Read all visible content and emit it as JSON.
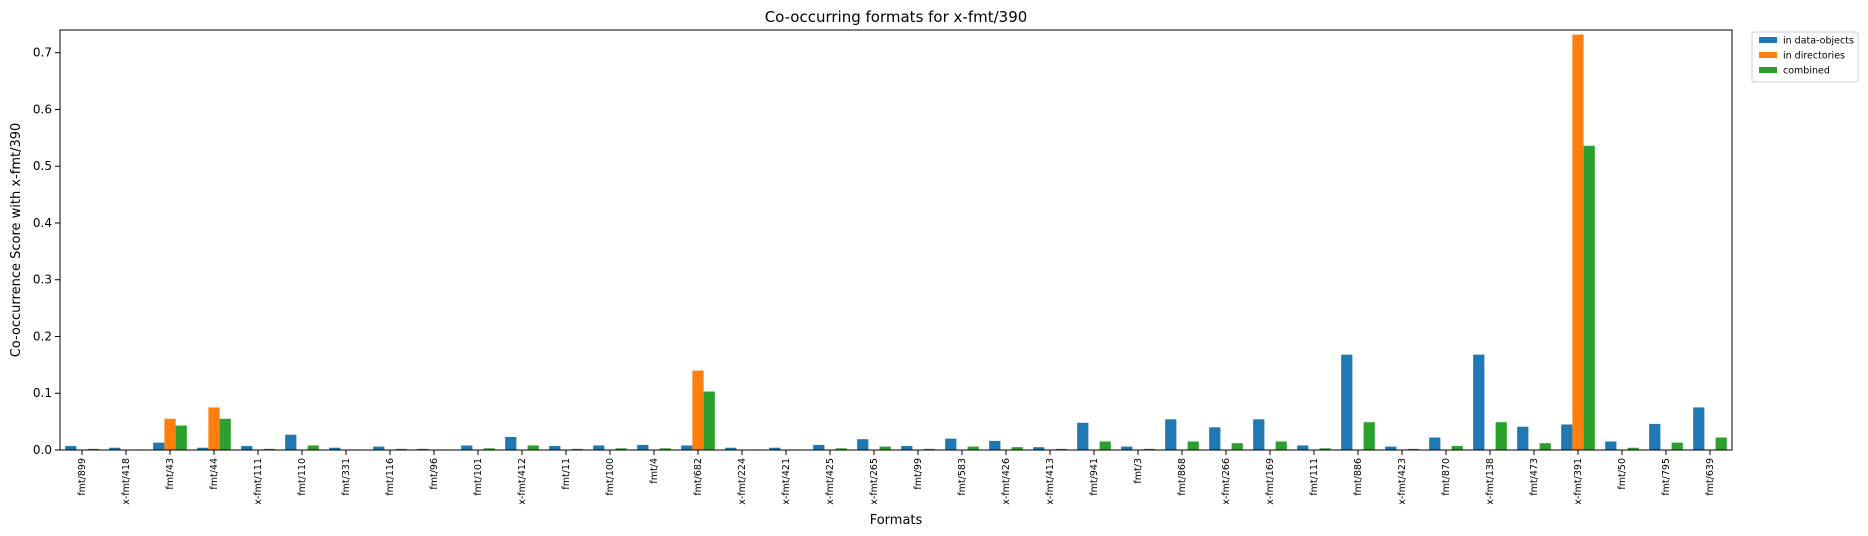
{
  "chart_data": {
    "type": "bar",
    "title": "Co-occurring formats for x-fmt/390",
    "xlabel": "Formats",
    "ylabel": "Co-occurrence Score with x-fmt/390",
    "ylim": [
      0,
      0.74
    ],
    "yticks": [
      "0.0",
      "0.1",
      "0.2",
      "0.3",
      "0.4",
      "0.5",
      "0.6",
      "0.7"
    ],
    "legend_position": "outside-top-right",
    "categories": [
      "fmt/899",
      "x-fmt/418",
      "fmt/43",
      "fmt/44",
      "x-fmt/111",
      "fmt/110",
      "fmt/331",
      "fmt/116",
      "fmt/96",
      "fmt/101",
      "x-fmt/412",
      "fmt/11",
      "fmt/100",
      "fmt/4",
      "fmt/682",
      "x-fmt/224",
      "x-fmt/421",
      "x-fmt/425",
      "x-fmt/265",
      "fmt/99",
      "fmt/583",
      "x-fmt/426",
      "x-fmt/413",
      "fmt/941",
      "fmt/3",
      "fmt/868",
      "x-fmt/266",
      "x-fmt/169",
      "fmt/111",
      "fmt/886",
      "x-fmt/423",
      "fmt/870",
      "x-fmt/138",
      "fmt/473",
      "x-fmt/391",
      "fmt/50",
      "fmt/795",
      "fmt/639"
    ],
    "series": [
      {
        "name": "in data-objects",
        "color": "#1f77b4",
        "values": [
          0.007,
          0.004,
          0.013,
          0.004,
          0.007,
          0.027,
          0.004,
          0.006,
          0.002,
          0.008,
          0.023,
          0.007,
          0.008,
          0.009,
          0.008,
          0.004,
          0.004,
          0.009,
          0.019,
          0.007,
          0.02,
          0.016,
          0.005,
          0.048,
          0.006,
          0.054,
          0.04,
          0.054,
          0.008,
          0.168,
          0.006,
          0.022,
          0.168,
          0.041,
          0.045,
          0.015,
          0.046,
          0.075
        ]
      },
      {
        "name": "in directories",
        "color": "#ff7f0e",
        "values": [
          0,
          0,
          0.055,
          0.075,
          0,
          0,
          0,
          0,
          0,
          0,
          0,
          0,
          0,
          0,
          0.14,
          0,
          0,
          0,
          0,
          0,
          0,
          0,
          0,
          0,
          0,
          0,
          0,
          0,
          0,
          0,
          0,
          0,
          0,
          0,
          0.732,
          0,
          0,
          0
        ]
      },
      {
        "name": "combined",
        "color": "#2ca02c",
        "values": [
          0.002,
          0.001,
          0.043,
          0.055,
          0.002,
          0.008,
          0.001,
          0.002,
          0.001,
          0.003,
          0.008,
          0.002,
          0.003,
          0.003,
          0.103,
          0.001,
          0.001,
          0.003,
          0.006,
          0.002,
          0.006,
          0.005,
          0.002,
          0.015,
          0.002,
          0.015,
          0.012,
          0.015,
          0.003,
          0.049,
          0.002,
          0.007,
          0.049,
          0.012,
          0.536,
          0.004,
          0.013,
          0.022
        ]
      }
    ]
  }
}
